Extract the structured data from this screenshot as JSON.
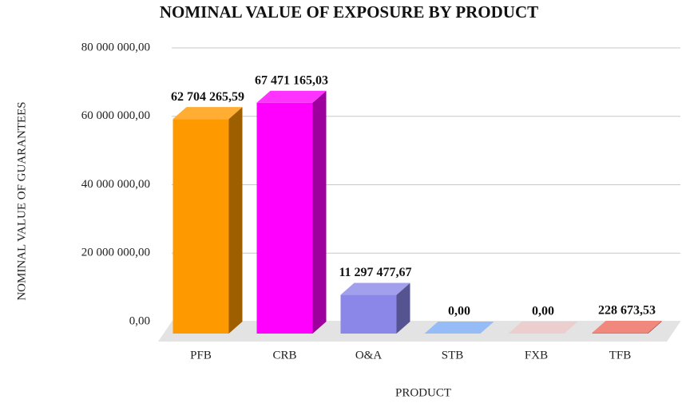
{
  "chart_data": {
    "type": "bar3d",
    "title": "NOMINAL VALUE OF EXPOSURE BY PRODUCT",
    "x_label": "PRODUCT",
    "y_label": "NOMINAL VALUE OF GUARANTEES",
    "categories": [
      "PFB",
      "CRB",
      "O&A",
      "STB",
      "FXB",
      "TFB"
    ],
    "values": [
      62704265.59,
      67471165.03,
      11297477.67,
      0,
      0,
      228673.53
    ],
    "value_labels": [
      "62 704 265,59",
      "67 471 165,03",
      "11 297 477,67",
      "0,00",
      "0,00",
      "228 673,53"
    ],
    "colors": [
      "#ff9900",
      "#ff00ff",
      "#8b87e8",
      "#7aabf5",
      "#e9c2c2",
      "#ee6a5e"
    ],
    "ylim": [
      0,
      80000000
    ],
    "yticks": [
      {
        "value": 0,
        "label": "0,00"
      },
      {
        "value": 20000000,
        "label": "20 000 000,00"
      },
      {
        "value": 40000000,
        "label": "40 000 000,00"
      },
      {
        "value": 60000000,
        "label": "60 000 000,00"
      },
      {
        "value": 80000000,
        "label": "80 000 000,00"
      }
    ],
    "grid": true
  }
}
